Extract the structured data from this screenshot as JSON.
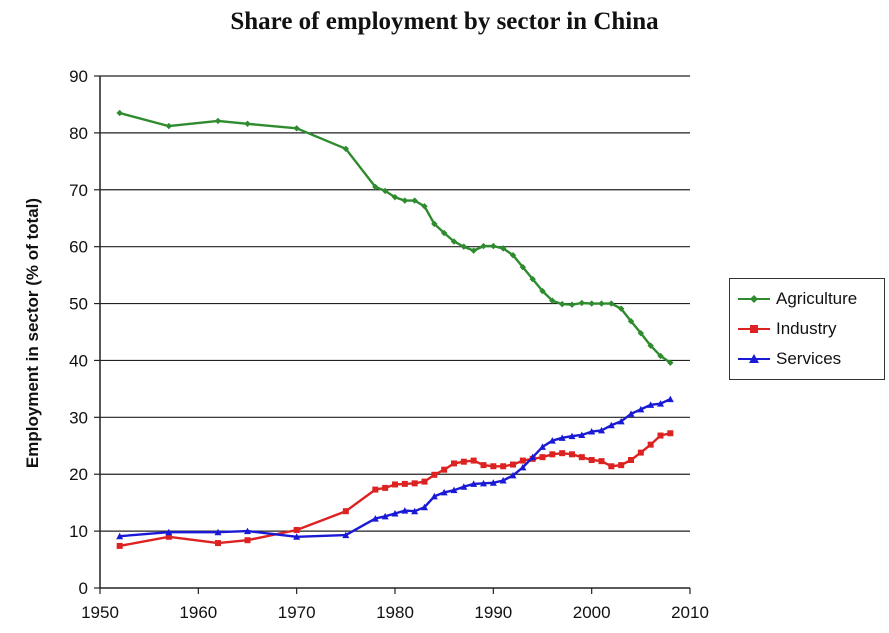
{
  "chart_data": {
    "type": "line",
    "title": "Share of employment by sector in China",
    "ylabel": "Employment in sector (% of total)",
    "xlabel": "",
    "xlim": [
      1950,
      2010
    ],
    "ylim": [
      0,
      90
    ],
    "x_ticks": [
      1950,
      1960,
      1970,
      1980,
      1990,
      2000,
      2010
    ],
    "y_ticks": [
      0,
      10,
      20,
      30,
      40,
      50,
      60,
      70,
      80,
      90
    ],
    "grid": "horizontal",
    "legend_position": "right",
    "series": [
      {
        "name": "Agriculture",
        "color": "#2e8b2e",
        "marker": "diamond",
        "x": [
          1952,
          1957,
          1962,
          1965,
          1970,
          1975,
          1978,
          1979,
          1980,
          1981,
          1982,
          1983,
          1984,
          1985,
          1986,
          1987,
          1988,
          1989,
          1990,
          1991,
          1992,
          1993,
          1994,
          1995,
          1996,
          1997,
          1998,
          1999,
          2000,
          2001,
          2002,
          2003,
          2004,
          2005,
          2006,
          2007,
          2008
        ],
        "y": [
          83.5,
          81.2,
          82.1,
          81.6,
          80.8,
          77.2,
          70.5,
          69.8,
          68.7,
          68.1,
          68.1,
          67.1,
          64.0,
          62.4,
          60.9,
          60.0,
          59.3,
          60.1,
          60.1,
          59.7,
          58.5,
          56.4,
          54.3,
          52.2,
          50.5,
          49.9,
          49.8,
          50.1,
          50.0,
          50.0,
          50.0,
          49.1,
          46.9,
          44.8,
          42.6,
          40.8,
          39.6
        ]
      },
      {
        "name": "Industry",
        "color": "#dd2222",
        "marker": "square",
        "x": [
          1952,
          1957,
          1962,
          1965,
          1970,
          1975,
          1978,
          1979,
          1980,
          1981,
          1982,
          1983,
          1984,
          1985,
          1986,
          1987,
          1988,
          1989,
          1990,
          1991,
          1992,
          1993,
          1994,
          1995,
          1996,
          1997,
          1998,
          1999,
          2000,
          2001,
          2002,
          2003,
          2004,
          2005,
          2006,
          2007,
          2008
        ],
        "y": [
          7.4,
          9.0,
          7.9,
          8.4,
          10.2,
          13.5,
          17.3,
          17.6,
          18.2,
          18.3,
          18.4,
          18.7,
          19.9,
          20.8,
          21.9,
          22.2,
          22.4,
          21.6,
          21.4,
          21.4,
          21.7,
          22.4,
          22.7,
          23.0,
          23.5,
          23.7,
          23.5,
          23.0,
          22.5,
          22.3,
          21.4,
          21.6,
          22.5,
          23.8,
          25.2,
          26.8,
          27.2
        ]
      },
      {
        "name": "Services",
        "color": "#1a1ad6",
        "marker": "triangle",
        "x": [
          1952,
          1957,
          1962,
          1965,
          1970,
          1975,
          1978,
          1979,
          1980,
          1981,
          1982,
          1983,
          1984,
          1985,
          1986,
          1987,
          1988,
          1989,
          1990,
          1991,
          1992,
          1993,
          1994,
          1995,
          1996,
          1997,
          1998,
          1999,
          2000,
          2001,
          2002,
          2003,
          2004,
          2005,
          2006,
          2007,
          2008
        ],
        "y": [
          9.1,
          9.8,
          9.8,
          10.0,
          9.0,
          9.3,
          12.2,
          12.6,
          13.1,
          13.6,
          13.5,
          14.2,
          16.1,
          16.8,
          17.2,
          17.8,
          18.3,
          18.4,
          18.5,
          18.9,
          19.8,
          21.2,
          23.0,
          24.8,
          25.9,
          26.4,
          26.7,
          26.9,
          27.5,
          27.7,
          28.6,
          29.3,
          30.6,
          31.4,
          32.2,
          32.4,
          33.2
        ]
      }
    ]
  }
}
